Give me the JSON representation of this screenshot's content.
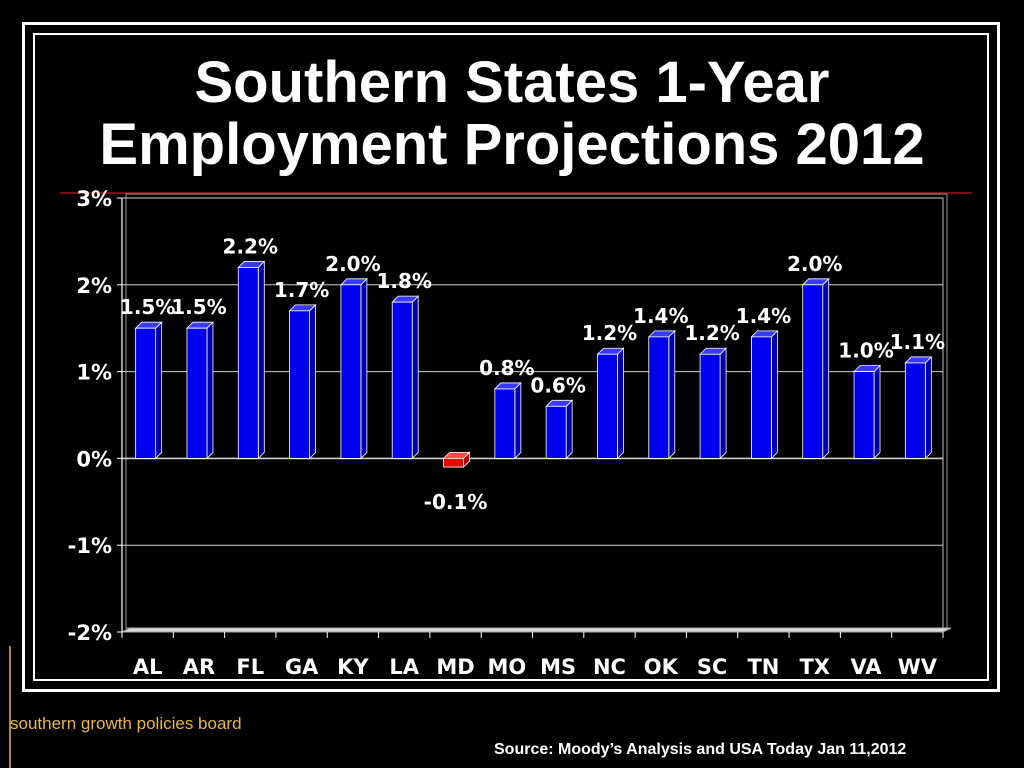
{
  "slide": {
    "title_line1": "Southern States 1-Year",
    "title_line2": "Employment Projections 2012",
    "source": "Source: Moody’s Analysis and USA Today Jan 11,2012",
    "logo_text": "southern growth policies board"
  },
  "colors": {
    "positive_bar": "#0000ee",
    "negative_bar": "#ee0000",
    "background": "#000000",
    "text": "#ffffff",
    "logo": "#e8b84a"
  },
  "chart_data": {
    "type": "bar",
    "title": "Southern States 1-Year Employment Projections 2012",
    "xlabel": "",
    "ylabel": "",
    "categories": [
      "AL",
      "AR",
      "FL",
      "GA",
      "KY",
      "LA",
      "MD",
      "MO",
      "MS",
      "NC",
      "OK",
      "SC",
      "TN",
      "TX",
      "VA",
      "WV"
    ],
    "values": [
      1.5,
      1.5,
      2.2,
      1.7,
      2.0,
      1.8,
      -0.1,
      0.8,
      0.6,
      1.2,
      1.4,
      1.2,
      1.4,
      2.0,
      1.0,
      1.1
    ],
    "data_labels": [
      "1.5%",
      "1.5%",
      "2.2%",
      "1.7%",
      "2.0%",
      "1.8%",
      "-0.1%",
      "0.8%",
      "0.6%",
      "1.2%",
      "1.4%",
      "1.2%",
      "1.4%",
      "2.0%",
      "1.0%",
      "1.1%"
    ],
    "y_ticks": [
      3,
      2,
      1,
      0,
      -1,
      -2
    ],
    "y_tick_labels": [
      "3%",
      "2%",
      "1%",
      "0%",
      "-1%",
      "-2%"
    ],
    "ylim": [
      -2,
      3
    ],
    "grid": true,
    "legend": "none",
    "style": "3d-column"
  }
}
